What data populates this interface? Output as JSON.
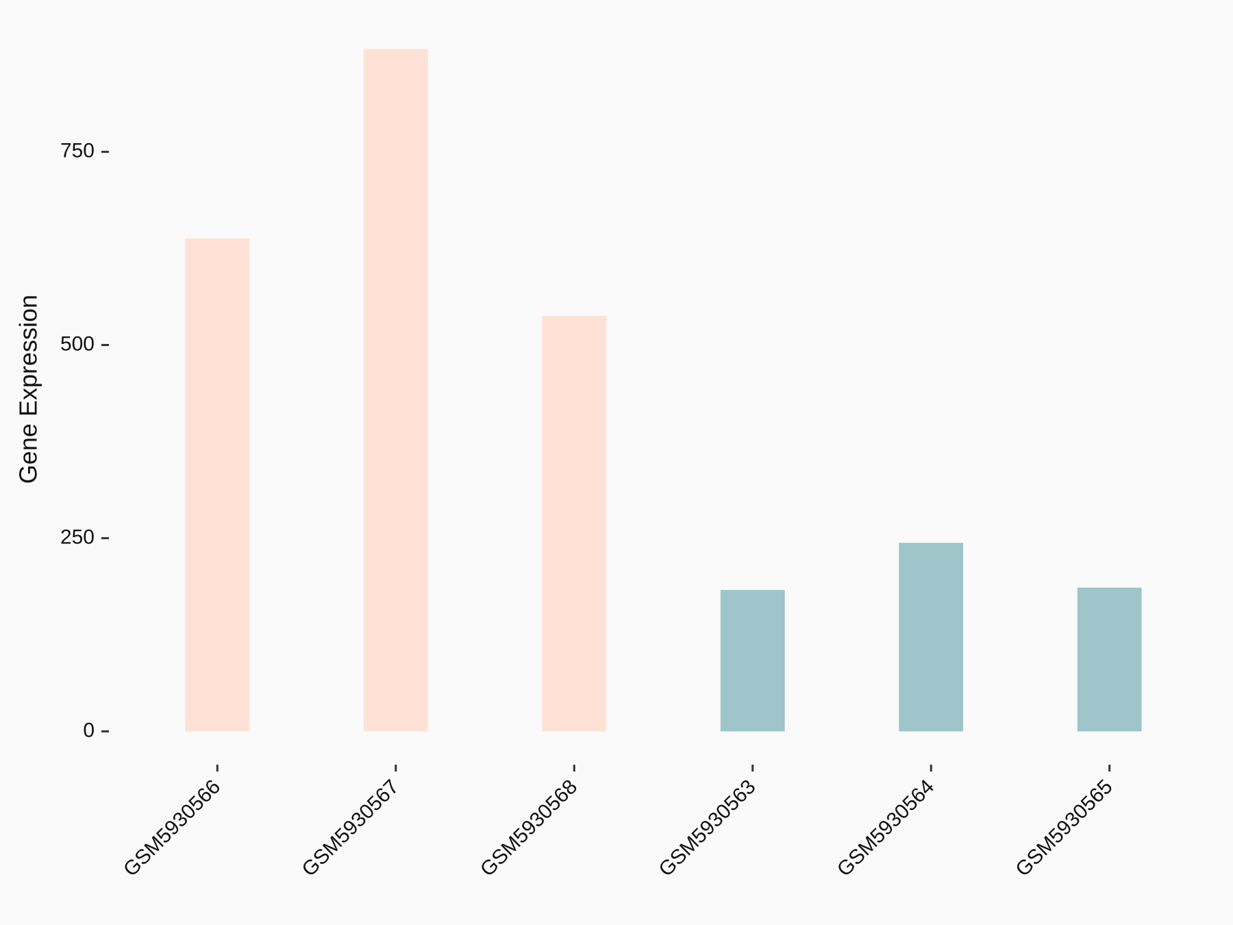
{
  "chart_data": {
    "type": "bar",
    "y_label": "Gene Expression",
    "categories": [
      "GSM5930566",
      "GSM5930567",
      "GSM5930568",
      "GSM5930563",
      "GSM5930564",
      "GSM5930565"
    ],
    "values": [
      638,
      883,
      538,
      183,
      244,
      186
    ],
    "colors": [
      "#FFE1D6",
      "#FFE1D6",
      "#FFE1D6",
      "#9EC5C9",
      "#9EC5C9",
      "#9EC5C9"
    ],
    "ylim": [
      -44,
      927
    ],
    "yticks": [
      0,
      250,
      500,
      750
    ]
  }
}
